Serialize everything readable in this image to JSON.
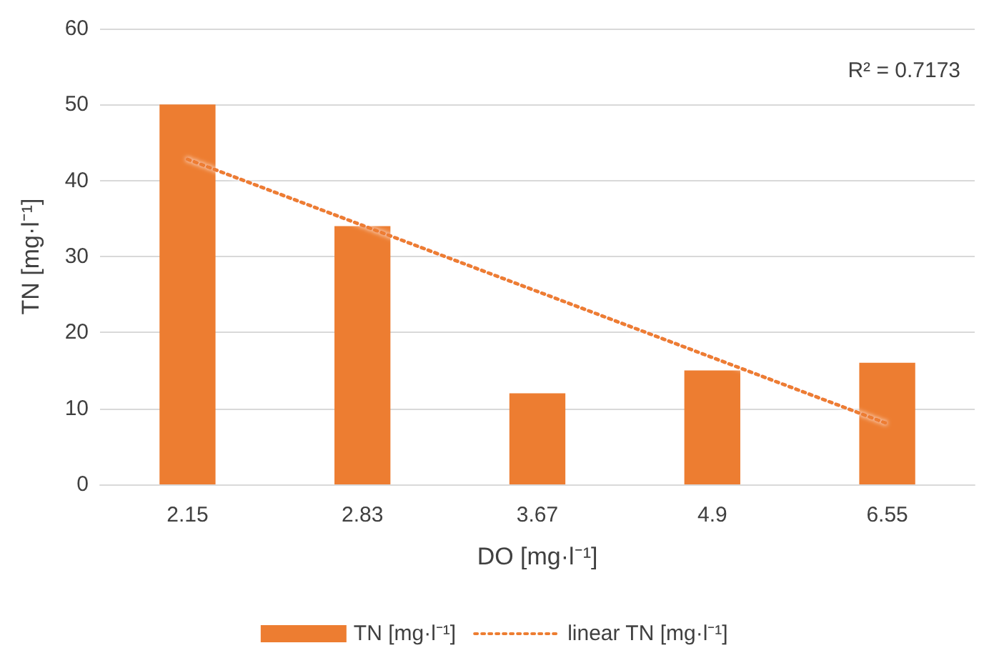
{
  "chart_data": {
    "type": "bar",
    "xlabel": "DO [mg·l⁻¹]",
    "ylabel": "TN [mg·l⁻¹]",
    "categories": [
      "2.15",
      "2.83",
      "3.67",
      "4.9",
      "6.55"
    ],
    "series": [
      {
        "name": "TN [mg·l⁻¹]",
        "color": "#ed7d31",
        "values": [
          50,
          34,
          12,
          15,
          16
        ]
      },
      {
        "name": "linear TN [mg·l⁻¹]",
        "type": "line",
        "color": "#ed7d31",
        "x": [
          "2.15",
          "2.83",
          "3.67",
          "4.9",
          "6.55"
        ],
        "values": [
          42.8,
          34.1,
          25.4,
          16.7,
          8.0
        ],
        "line_style": "dotted",
        "marker": "none"
      }
    ],
    "ylim": [
      0,
      60
    ],
    "yticks": [
      0,
      10,
      20,
      30,
      40,
      50,
      60
    ],
    "grid": "y",
    "legend": "bottom",
    "annotations": [
      "R² = 0.7173"
    ]
  }
}
